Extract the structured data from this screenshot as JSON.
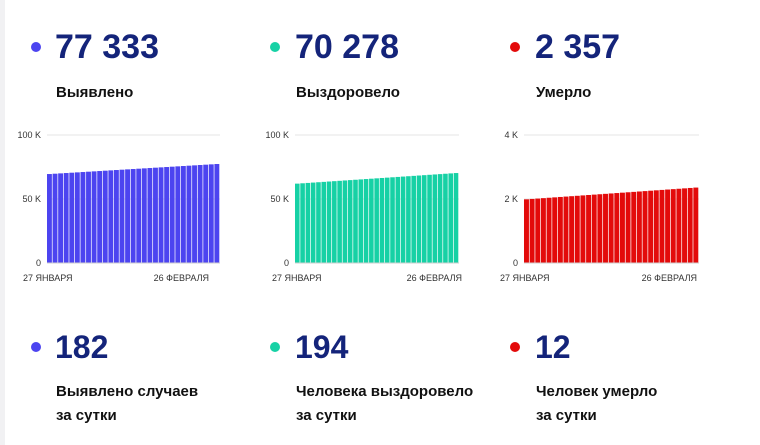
{
  "summary": [
    {
      "value": "77 333",
      "label": "Выявлено",
      "color": "#4c44f0"
    },
    {
      "value": "70 278",
      "label": "Выздоровело",
      "color": "#16d1a5"
    },
    {
      "value": "2 357",
      "label": "Умерло",
      "color": "#e30a0a"
    }
  ],
  "daily": [
    {
      "value": "182",
      "line1": "Выявлено случаев",
      "line2": "за сутки",
      "color": "#4c44f0"
    },
    {
      "value": "194",
      "line1": "Человека выздоровело",
      "line2": "за сутки",
      "color": "#16d1a5"
    },
    {
      "value": "12",
      "line1": "Человек умерло",
      "line2": "за сутки",
      "color": "#e30a0a"
    }
  ],
  "chart_data": [
    {
      "type": "bar",
      "color": "#4c44f0",
      "ylim": [
        0,
        100000
      ],
      "y_ticks": [
        "100 K",
        "50 K",
        "0"
      ],
      "x_tick_labels": [
        "27 ЯНВАРЯ",
        "26 ФЕВРАЛЯ"
      ],
      "series": [
        {
          "values_start": 69500,
          "values_end": 77333,
          "count": 31
        }
      ]
    },
    {
      "type": "bar",
      "color": "#16d1a5",
      "ylim": [
        0,
        100000
      ],
      "y_ticks": [
        "100 K",
        "50 K",
        "0"
      ],
      "x_tick_labels": [
        "27 ЯНВАРЯ",
        "26 ФЕВРАЛЯ"
      ],
      "series": [
        {
          "values_start": 62000,
          "values_end": 70278,
          "count": 31
        }
      ]
    },
    {
      "type": "bar",
      "color": "#e30a0a",
      "ylim": [
        0,
        4000
      ],
      "y_ticks": [
        "4 K",
        "2 K",
        "0"
      ],
      "x_tick_labels": [
        "27 ЯНВАРЯ",
        "26 ФЕВРАЛЯ"
      ],
      "series": [
        {
          "values_start": 1990,
          "values_end": 2357,
          "count": 31
        }
      ]
    }
  ]
}
